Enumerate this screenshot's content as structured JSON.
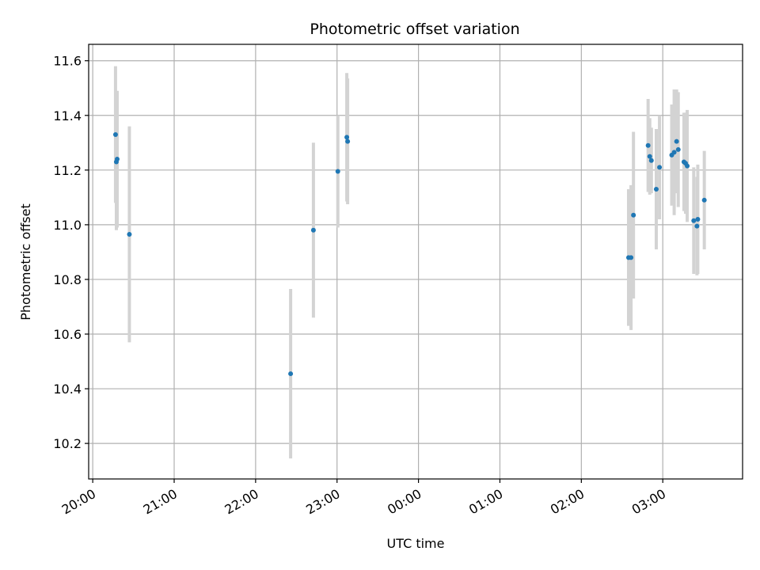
{
  "chart_data": {
    "type": "scatter",
    "title": "Photometric offset variation",
    "xlabel": "UTC time",
    "ylabel": "Photometric offset",
    "x_unit": "hours since 20:00 UTC",
    "xlim": [
      -0.05,
      7.98
    ],
    "ylim": [
      10.07,
      11.66
    ],
    "x_ticks": [
      {
        "value": 0,
        "label": "20:00"
      },
      {
        "value": 1,
        "label": "21:00"
      },
      {
        "value": 2,
        "label": "22:00"
      },
      {
        "value": 3,
        "label": "23:00"
      },
      {
        "value": 4,
        "label": "00:00"
      },
      {
        "value": 5,
        "label": "01:00"
      },
      {
        "value": 6,
        "label": "02:00"
      },
      {
        "value": 7,
        "label": "03:00"
      }
    ],
    "y_ticks": [
      {
        "value": 10.2,
        "label": "10.2"
      },
      {
        "value": 10.4,
        "label": "10.4"
      },
      {
        "value": 10.6,
        "label": "10.6"
      },
      {
        "value": 10.8,
        "label": "10.8"
      },
      {
        "value": 11.0,
        "label": "11.0"
      },
      {
        "value": 11.2,
        "label": "11.2"
      },
      {
        "value": 11.4,
        "label": "11.4"
      },
      {
        "value": 11.6,
        "label": "11.6"
      }
    ],
    "grid": true,
    "marker_color": "#1f77b4",
    "errorbar_color": "#d3d3d3",
    "points": [
      {
        "x": 0.28,
        "y": 11.33,
        "err": 0.25
      },
      {
        "x": 0.29,
        "y": 11.23,
        "err": 0.25
      },
      {
        "x": 0.3,
        "y": 11.24,
        "err": 0.25
      },
      {
        "x": 0.45,
        "y": 10.965,
        "err": 0.395
      },
      {
        "x": 2.43,
        "y": 10.455,
        "err": 0.31
      },
      {
        "x": 2.71,
        "y": 10.98,
        "err": 0.32
      },
      {
        "x": 3.01,
        "y": 11.195,
        "err": 0.205
      },
      {
        "x": 3.12,
        "y": 11.32,
        "err": 0.235
      },
      {
        "x": 3.13,
        "y": 11.305,
        "err": 0.23
      },
      {
        "x": 6.58,
        "y": 10.88,
        "err": 0.25
      },
      {
        "x": 6.61,
        "y": 10.88,
        "err": 0.265
      },
      {
        "x": 6.64,
        "y": 11.035,
        "err": 0.305
      },
      {
        "x": 6.82,
        "y": 11.29,
        "err": 0.17
      },
      {
        "x": 6.84,
        "y": 11.25,
        "err": 0.14
      },
      {
        "x": 6.86,
        "y": 11.235,
        "err": 0.12
      },
      {
        "x": 6.92,
        "y": 11.13,
        "err": 0.22
      },
      {
        "x": 6.96,
        "y": 11.21,
        "err": 0.19
      },
      {
        "x": 7.11,
        "y": 11.255,
        "err": 0.185
      },
      {
        "x": 7.14,
        "y": 11.265,
        "err": 0.23
      },
      {
        "x": 7.17,
        "y": 11.305,
        "err": 0.19
      },
      {
        "x": 7.19,
        "y": 11.275,
        "err": 0.21
      },
      {
        "x": 7.26,
        "y": 11.23,
        "err": 0.18
      },
      {
        "x": 7.28,
        "y": 11.225,
        "err": 0.185
      },
      {
        "x": 7.3,
        "y": 11.215,
        "err": 0.205
      },
      {
        "x": 7.38,
        "y": 11.015,
        "err": 0.195
      },
      {
        "x": 7.43,
        "y": 11.02,
        "err": 0.2
      },
      {
        "x": 7.42,
        "y": 10.995,
        "err": 0.18
      },
      {
        "x": 7.51,
        "y": 11.09,
        "err": 0.18
      }
    ]
  }
}
